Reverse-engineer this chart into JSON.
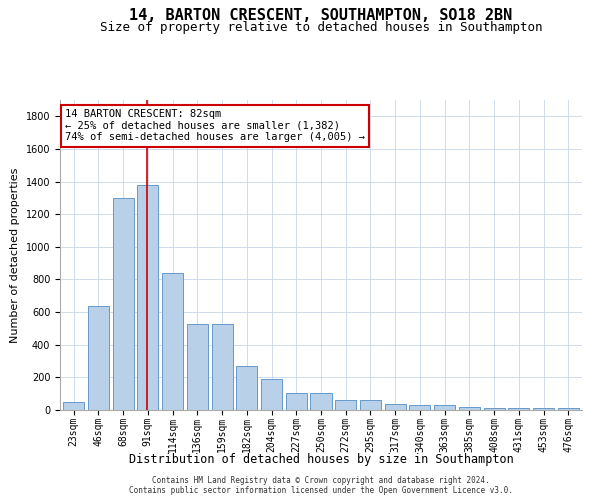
{
  "title": "14, BARTON CRESCENT, SOUTHAMPTON, SO18 2BN",
  "subtitle": "Size of property relative to detached houses in Southampton",
  "xlabel": "Distribution of detached houses by size in Southampton",
  "ylabel": "Number of detached properties",
  "footer_line1": "Contains HM Land Registry data © Crown copyright and database right 2024.",
  "footer_line2": "Contains public sector information licensed under the Open Government Licence v3.0.",
  "bar_labels": [
    "23sqm",
    "46sqm",
    "68sqm",
    "91sqm",
    "114sqm",
    "136sqm",
    "159sqm",
    "182sqm",
    "204sqm",
    "227sqm",
    "250sqm",
    "272sqm",
    "295sqm",
    "317sqm",
    "340sqm",
    "363sqm",
    "385sqm",
    "408sqm",
    "431sqm",
    "453sqm",
    "476sqm"
  ],
  "bar_values": [
    50,
    640,
    1300,
    1380,
    840,
    530,
    530,
    270,
    190,
    105,
    105,
    60,
    60,
    35,
    30,
    30,
    20,
    15,
    10,
    10,
    10
  ],
  "bar_color": "#b8d0e8",
  "bar_edge_color": "#6699cc",
  "ylim": [
    0,
    1900
  ],
  "yticks": [
    0,
    200,
    400,
    600,
    800,
    1000,
    1200,
    1400,
    1600,
    1800
  ],
  "vline_color": "#cc0000",
  "annotation_text": "14 BARTON CRESCENT: 82sqm\n← 25% of detached houses are smaller (1,382)\n74% of semi-detached houses are larger (4,005) →",
  "annotation_box_color": "#ffffff",
  "annotation_border_color": "#cc0000",
  "background_color": "#ffffff",
  "grid_color": "#c8d8e8",
  "title_fontsize": 11,
  "subtitle_fontsize": 9,
  "xlabel_fontsize": 8.5,
  "ylabel_fontsize": 8,
  "tick_fontsize": 7,
  "annotation_fontsize": 7.5,
  "footer_fontsize": 5.5
}
